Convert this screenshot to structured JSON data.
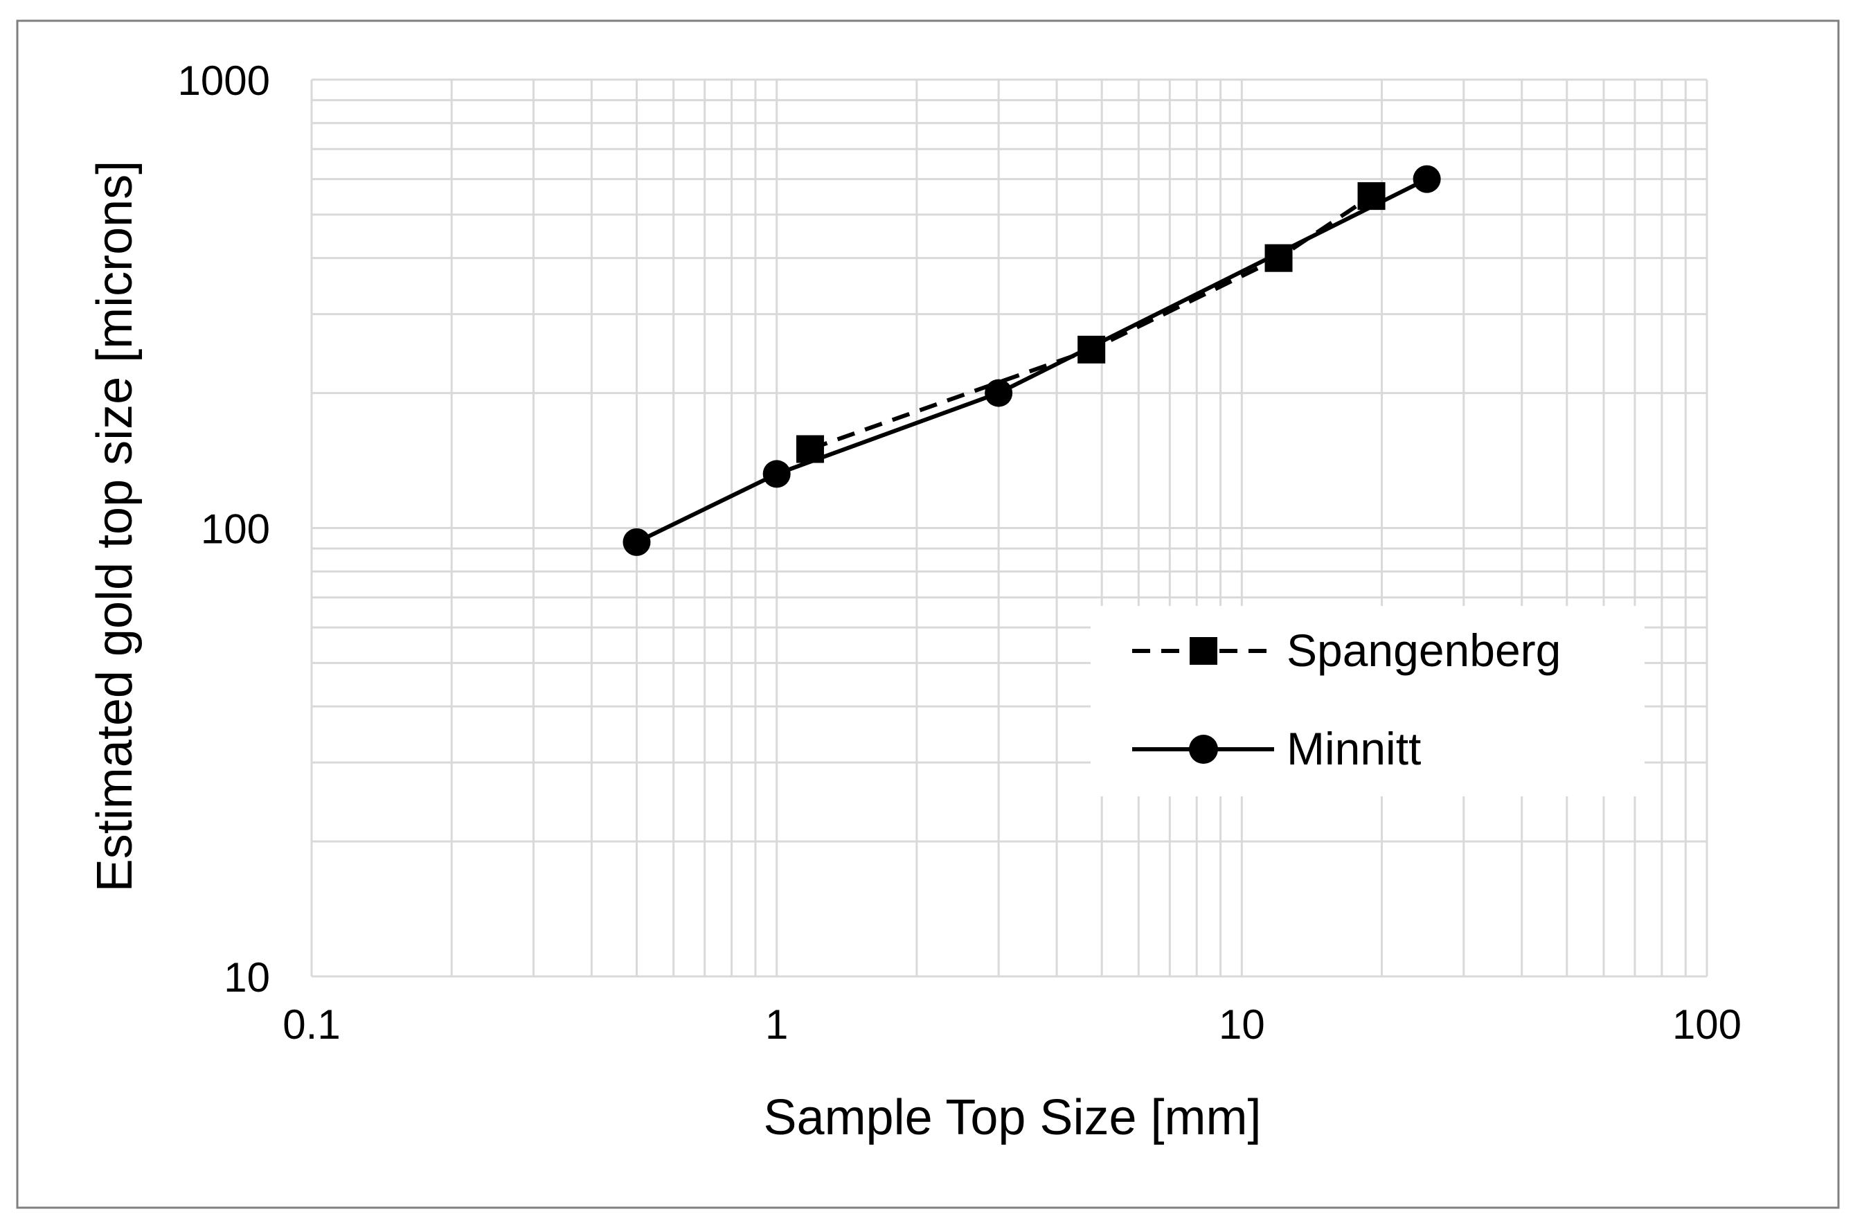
{
  "chart_data": {
    "type": "line",
    "title": "",
    "xlabel": "Sample Top Size [mm]",
    "ylabel": "Estimated gold top size [microns]",
    "xscale": "log",
    "yscale": "log",
    "xlim": [
      0.1,
      100
    ],
    "ylim": [
      10,
      1000
    ],
    "xticks": [
      0.1,
      1,
      10,
      100
    ],
    "xtick_labels": [
      "0.1",
      "1",
      "10",
      "100"
    ],
    "yticks": [
      10,
      100,
      1000
    ],
    "ytick_labels": [
      "10",
      "100",
      "1000"
    ],
    "grid": true,
    "legend_position": "lower-right",
    "series": [
      {
        "name": "Spangenberg",
        "line_style": "dashed",
        "marker": "square",
        "x": [
          1.18,
          4.75,
          12,
          19
        ],
        "y": [
          150,
          250,
          400,
          550
        ]
      },
      {
        "name": "Minnitt",
        "line_style": "solid",
        "marker": "circle",
        "x": [
          0.5,
          1,
          3,
          25
        ],
        "y": [
          93,
          132,
          200,
          600
        ]
      }
    ],
    "colors": {
      "line": "#000000",
      "grid": "#d9d9d9",
      "frame": "#7f7f7f"
    }
  }
}
